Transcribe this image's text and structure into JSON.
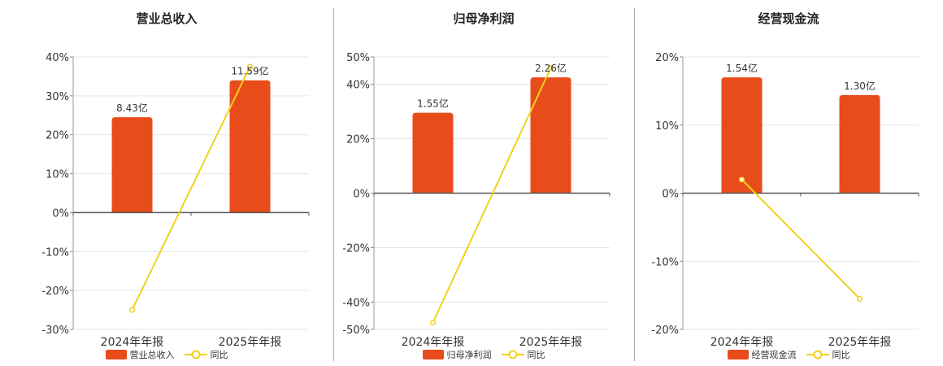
{
  "colors": {
    "bar": "#E84C1A",
    "line": "#F2D01C"
  },
  "chart_data": [
    {
      "type": "bar",
      "title": "营业总收入",
      "categories": [
        "2024年年报",
        "2025年年报"
      ],
      "series": [
        {
          "name": "营业总收入",
          "type": "bar",
          "values": [
            24.5,
            34.0
          ],
          "labels": [
            "8.43亿",
            "11.59亿"
          ]
        },
        {
          "name": "同比",
          "type": "line",
          "values": [
            -25.0,
            37.5
          ]
        }
      ],
      "ylim": [
        -30,
        40
      ],
      "yticks": [
        40,
        30,
        20,
        10,
        0,
        -10,
        -20,
        -30
      ],
      "ytick_labels": [
        "40%",
        "30%",
        "20%",
        "10%",
        "0%",
        "-10%",
        "-20%",
        "-30%"
      ],
      "grid": true
    },
    {
      "type": "bar",
      "title": "归母净利润",
      "categories": [
        "2024年年报",
        "2025年年报"
      ],
      "series": [
        {
          "name": "归母净利润",
          "type": "bar",
          "values": [
            29.5,
            42.5
          ],
          "labels": [
            "1.55亿",
            "2.26亿"
          ]
        },
        {
          "name": "同比",
          "type": "line",
          "values": [
            -47.5,
            46.0
          ]
        }
      ],
      "ylim": [
        -50,
        50
      ],
      "yticks": [
        50,
        40,
        20,
        0,
        -20,
        -40,
        -50
      ],
      "ytick_labels": [
        "50%",
        "40%",
        "20%",
        "0%",
        "-20%",
        "-40%",
        "-50%"
      ],
      "grid": true
    },
    {
      "type": "bar",
      "title": "经营现金流",
      "categories": [
        "2024年年报",
        "2025年年报"
      ],
      "series": [
        {
          "name": "经营现金流",
          "type": "bar",
          "values": [
            17.0,
            14.4
          ],
          "labels": [
            "1.54亿",
            "1.30亿"
          ]
        },
        {
          "name": "同比",
          "type": "line",
          "values": [
            2.0,
            -15.5
          ]
        }
      ],
      "ylim": [
        -20,
        20
      ],
      "yticks": [
        20,
        10,
        0,
        -10,
        -20
      ],
      "ytick_labels": [
        "20%",
        "10%",
        "0%",
        "-10%",
        "-20%"
      ],
      "grid": true
    }
  ]
}
